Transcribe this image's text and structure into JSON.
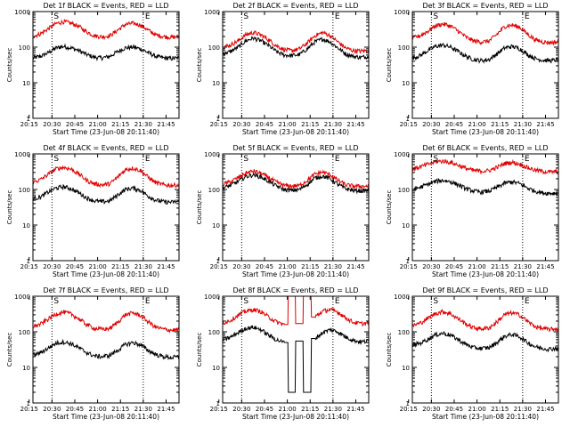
{
  "chart_data": [
    {
      "type": "line",
      "title": "Det 1f BLACK = Events, RED = LLD",
      "xlabel": "Start Time (23-Jun-08 20:11:40)",
      "ylabel": "Counts/sec",
      "yscale": "log",
      "ylim": [
        1,
        1000
      ],
      "x_ticks": [
        "20:15",
        "20:30",
        "20:45",
        "21:00",
        "21:15",
        "21:30",
        "21:45"
      ],
      "y_ticks": [
        "1",
        "10",
        "100",
        "1000"
      ],
      "markers": [
        "S",
        "E"
      ],
      "grid": false,
      "series": [
        {
          "name": "Events",
          "color": "#000000",
          "values": [
            50,
            55,
            70,
            95,
            105,
            95,
            80,
            62,
            52,
            50,
            55,
            75,
            95,
            100,
            90,
            70,
            55,
            50,
            48,
            50
          ]
        },
        {
          "name": "LLD",
          "color": "#e00000",
          "values": [
            200,
            240,
            330,
            460,
            520,
            470,
            380,
            270,
            210,
            195,
            210,
            300,
            430,
            470,
            420,
            300,
            220,
            200,
            190,
            195
          ]
        }
      ]
    },
    {
      "type": "line",
      "title": "Det 2f BLACK = Events, RED = LLD",
      "xlabel": "Start Time (23-Jun-08 20:11:40)",
      "ylabel": "Counts/sec",
      "yscale": "log",
      "ylim": [
        1,
        1000
      ],
      "x_ticks": [
        "20:15",
        "20:30",
        "20:45",
        "21:00",
        "21:15",
        "21:30",
        "21:45"
      ],
      "y_ticks": [
        "1",
        "10",
        "100",
        "1000"
      ],
      "markers": [
        "S",
        "E"
      ],
      "grid": false,
      "series": [
        {
          "name": "Events",
          "color": "#000000",
          "values": [
            65,
            75,
            100,
            150,
            180,
            150,
            110,
            75,
            60,
            58,
            62,
            90,
            140,
            170,
            140,
            95,
            65,
            55,
            52,
            55
          ]
        },
        {
          "name": "LLD",
          "color": "#e00000",
          "values": [
            100,
            115,
            150,
            220,
            260,
            220,
            160,
            110,
            85,
            80,
            90,
            130,
            210,
            260,
            210,
            140,
            95,
            80,
            78,
            80
          ]
        }
      ]
    },
    {
      "type": "line",
      "title": "Det 3f BLACK = Events, RED = LLD",
      "xlabel": "Start Time (23-Jun-08 20:11:40)",
      "ylabel": "Counts/sec",
      "yscale": "log",
      "ylim": [
        1,
        1000
      ],
      "x_ticks": [
        "20:15",
        "20:30",
        "20:45",
        "21:00",
        "21:15",
        "21:30",
        "21:45"
      ],
      "y_ticks": [
        "1",
        "10",
        "100",
        "1000"
      ],
      "markers": [
        "S",
        "E"
      ],
      "grid": false,
      "series": [
        {
          "name": "Events",
          "color": "#000000",
          "values": [
            50,
            58,
            80,
            105,
            115,
            100,
            75,
            55,
            45,
            42,
            45,
            65,
            95,
            105,
            90,
            62,
            48,
            43,
            42,
            44
          ]
        },
        {
          "name": "LLD",
          "color": "#e00000",
          "values": [
            180,
            210,
            280,
            400,
            450,
            390,
            280,
            190,
            150,
            140,
            150,
            230,
            380,
            420,
            360,
            230,
            160,
            140,
            135,
            140
          ]
        }
      ]
    },
    {
      "type": "line",
      "title": "Det 4f BLACK = Events, RED = LLD",
      "xlabel": "Start Time (23-Jun-08 20:11:40)",
      "ylabel": "Counts/sec",
      "yscale": "log",
      "ylim": [
        1,
        1000
      ],
      "x_ticks": [
        "20:15",
        "20:30",
        "20:45",
        "21:00",
        "21:15",
        "21:30",
        "21:45"
      ],
      "y_ticks": [
        "1",
        "10",
        "100",
        "1000"
      ],
      "markers": [
        "S",
        "E"
      ],
      "grid": false,
      "series": [
        {
          "name": "Events",
          "color": "#000000",
          "values": [
            55,
            62,
            85,
            110,
            120,
            105,
            80,
            58,
            48,
            45,
            48,
            70,
            100,
            110,
            95,
            65,
            50,
            45,
            44,
            46
          ]
        },
        {
          "name": "LLD",
          "color": "#e00000",
          "values": [
            160,
            190,
            270,
            380,
            420,
            370,
            270,
            180,
            145,
            135,
            145,
            220,
            360,
            400,
            340,
            220,
            155,
            135,
            130,
            135
          ]
        }
      ]
    },
    {
      "type": "line",
      "title": "Det 5f BLACK = Events, RED = LLD",
      "xlabel": "Start Time (23-Jun-08 20:11:40)",
      "ylabel": "Counts/sec",
      "yscale": "log",
      "ylim": [
        1,
        1000
      ],
      "x_ticks": [
        "20:15",
        "20:30",
        "20:45",
        "21:00",
        "21:15",
        "21:30",
        "21:45"
      ],
      "y_ticks": [
        "1",
        "10",
        "100",
        "1000"
      ],
      "markers": [
        "S",
        "E"
      ],
      "grid": false,
      "series": [
        {
          "name": "Events",
          "color": "#000000",
          "values": [
            110,
            130,
            170,
            230,
            260,
            225,
            170,
            125,
            100,
            95,
            100,
            140,
            210,
            240,
            200,
            140,
            105,
            95,
            92,
            95
          ]
        },
        {
          "name": "LLD",
          "color": "#e00000",
          "values": [
            140,
            165,
            215,
            290,
            330,
            285,
            215,
            160,
            130,
            125,
            130,
            180,
            270,
            310,
            260,
            180,
            135,
            125,
            122,
            125
          ]
        }
      ]
    },
    {
      "type": "line",
      "title": "Det 6f BLACK = Events, RED = LLD",
      "xlabel": "Start Time (23-Jun-08 20:11:40)",
      "ylabel": "Counts/sec",
      "yscale": "log",
      "ylim": [
        1,
        1000
      ],
      "x_ticks": [
        "20:15",
        "20:30",
        "20:45",
        "21:00",
        "21:15",
        "21:30",
        "21:45"
      ],
      "y_ticks": [
        "1",
        "10",
        "100",
        "1000"
      ],
      "markers": [
        "S",
        "E"
      ],
      "grid": false,
      "series": [
        {
          "name": "Events",
          "color": "#000000",
          "values": [
            100,
            115,
            140,
            170,
            180,
            165,
            135,
            105,
            90,
            85,
            90,
            115,
            150,
            165,
            145,
            110,
            90,
            80,
            78,
            80
          ]
        },
        {
          "name": "LLD",
          "color": "#e00000",
          "values": [
            380,
            430,
            510,
            600,
            630,
            580,
            480,
            390,
            340,
            330,
            340,
            420,
            540,
            580,
            520,
            410,
            350,
            320,
            310,
            320
          ]
        }
      ]
    },
    {
      "type": "line",
      "title": "Det 7f BLACK = Events, RED = LLD",
      "xlabel": "Start Time (23-Jun-08 20:11:40)",
      "ylabel": "Counts/sec",
      "yscale": "log",
      "ylim": [
        1,
        1000
      ],
      "x_ticks": [
        "20:15",
        "20:30",
        "20:45",
        "21:00",
        "21:15",
        "21:30",
        "21:45"
      ],
      "y_ticks": [
        "1",
        "10",
        "100",
        "1000"
      ],
      "markers": [
        "S",
        "E"
      ],
      "grid": false,
      "series": [
        {
          "name": "Events",
          "color": "#000000",
          "values": [
            22,
            26,
            35,
            48,
            52,
            46,
            35,
            26,
            21,
            20,
            22,
            30,
            44,
            50,
            43,
            30,
            23,
            20,
            19,
            20
          ]
        },
        {
          "name": "LLD",
          "color": "#e00000",
          "values": [
            140,
            165,
            230,
            320,
            360,
            315,
            230,
            160,
            125,
            118,
            125,
            185,
            300,
            340,
            290,
            190,
            135,
            118,
            112,
            115
          ]
        }
      ]
    },
    {
      "type": "line",
      "title": "Det 8f BLACK = Events, RED = LLD",
      "xlabel": "Start Time (23-Jun-08 20:11:40)",
      "ylabel": "Counts/sec",
      "yscale": "log",
      "ylim": [
        1,
        1000
      ],
      "x_ticks": [
        "20:15",
        "20:30",
        "20:45",
        "21:00",
        "21:15",
        "21:30",
        "21:45"
      ],
      "y_ticks": [
        "1",
        "10",
        "100",
        "1000"
      ],
      "markers": [
        "S",
        "E"
      ],
      "grid": false,
      "series": [
        {
          "name": "Events",
          "color": "#000000",
          "values": [
            60,
            70,
            95,
            125,
            135,
            115,
            80,
            60,
            50,
            2,
            55,
            2,
            65,
            95,
            115,
            100,
            72,
            58,
            52,
            55
          ]
        },
        {
          "name": "LLD",
          "color": "#e00000",
          "values": [
            180,
            210,
            290,
            380,
            420,
            370,
            260,
            190,
            160,
            2000,
            170,
            2000,
            260,
            380,
            420,
            360,
            250,
            185,
            170,
            175
          ]
        }
      ]
    },
    {
      "type": "line",
      "title": "Det 9f BLACK = Events, RED = LLD",
      "xlabel": "Start Time (23-Jun-08 20:11:40)",
      "ylabel": "Counts/sec",
      "yscale": "log",
      "ylim": [
        1,
        1000
      ],
      "x_ticks": [
        "20:15",
        "20:30",
        "20:45",
        "21:00",
        "21:15",
        "21:30",
        "21:45"
      ],
      "y_ticks": [
        "1",
        "10",
        "100",
        "1000"
      ],
      "markers": [
        "S",
        "E"
      ],
      "grid": false,
      "series": [
        {
          "name": "Events",
          "color": "#000000",
          "values": [
            42,
            48,
            62,
            82,
            92,
            80,
            60,
            44,
            36,
            34,
            36,
            50,
            75,
            85,
            72,
            50,
            38,
            34,
            33,
            35
          ]
        },
        {
          "name": "LLD",
          "color": "#e00000",
          "values": [
            150,
            175,
            240,
            330,
            370,
            320,
            230,
            165,
            130,
            122,
            130,
            190,
            305,
            345,
            295,
            195,
            140,
            122,
            118,
            122
          ]
        }
      ]
    }
  ]
}
